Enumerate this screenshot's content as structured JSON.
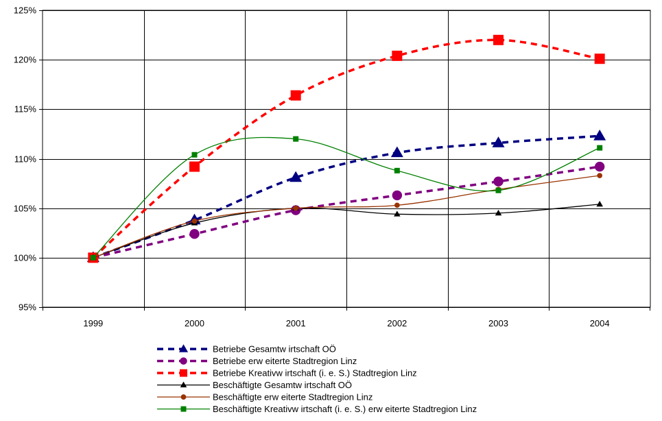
{
  "chart_data": {
    "type": "line",
    "title": "",
    "xlabel": "",
    "ylabel": "",
    "categories": [
      "1999",
      "2000",
      "2001",
      "2002",
      "2003",
      "2004"
    ],
    "ylim": [
      95,
      125
    ],
    "yticks": [
      95,
      100,
      105,
      110,
      115,
      120,
      125
    ],
    "ytick_labels": [
      "95%",
      "100%",
      "105%",
      "110%",
      "115%",
      "120%",
      "125%"
    ],
    "grid": true,
    "legend_position": "bottom",
    "series": [
      {
        "name": "Betriebe Gesamtw irtschaft OÖ",
        "values": [
          100,
          103.8,
          108.1,
          110.6,
          111.6,
          112.3
        ],
        "color": "#000080",
        "dash": true,
        "marker": "triangle"
      },
      {
        "name": "Betriebe erw eiterte Stadtregion Linz",
        "values": [
          100,
          102.4,
          104.8,
          106.3,
          107.7,
          109.2
        ],
        "color": "#800080",
        "dash": true,
        "marker": "circle"
      },
      {
        "name": "Betriebe Kreativw irtschaft (i. e. S.) Stadtregion Linz",
        "values": [
          100,
          109.2,
          116.4,
          120.4,
          122.0,
          120.1
        ],
        "color": "#ff0000",
        "dash": true,
        "marker": "square"
      },
      {
        "name": "Beschäftigte Gesamtw irtschaft OÖ",
        "values": [
          100,
          103.5,
          105.0,
          104.4,
          104.5,
          105.4
        ],
        "color": "#000000",
        "dash": false,
        "marker": "triangle"
      },
      {
        "name": "Beschäftigte erw eiterte Stadtregion Linz",
        "values": [
          100,
          103.7,
          105.0,
          105.3,
          106.9,
          108.3
        ],
        "color": "#993300",
        "dash": false,
        "marker": "circle"
      },
      {
        "name": "Beschäftigte Kreativw irtschaft (i. e. S.) erw eiterte Stadtregion Linz",
        "values": [
          100,
          110.4,
          112.0,
          108.8,
          106.8,
          111.1
        ],
        "color": "#008000",
        "dash": false,
        "marker": "square"
      }
    ]
  }
}
